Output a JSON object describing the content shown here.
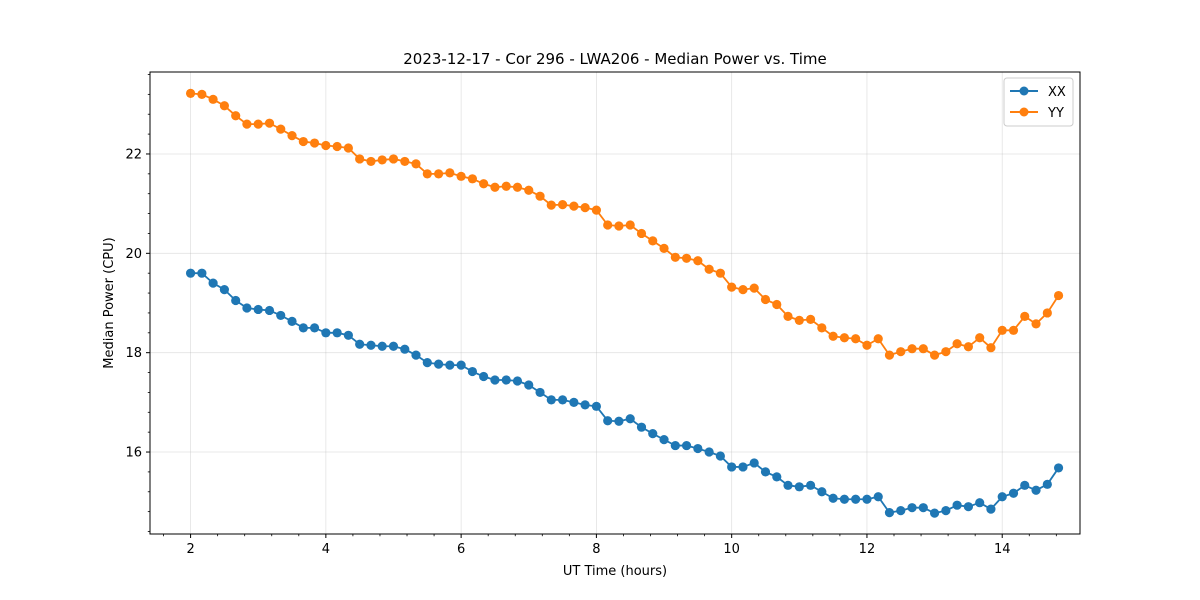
{
  "chart_data": {
    "type": "line",
    "title": "2023-12-17 - Cor 296 - LWA206 - Median Power vs. Time",
    "xlabel": "UT Time (hours)",
    "ylabel": "Median Power (CPU)",
    "xlim": [
      1.4,
      15.15
    ],
    "ylim": [
      14.35,
      23.65
    ],
    "xticks": [
      2,
      4,
      6,
      8,
      10,
      12,
      14
    ],
    "yticks": [
      16,
      18,
      20,
      22
    ],
    "xtick_labels": [
      "2",
      "4",
      "6",
      "8",
      "10",
      "12",
      "14"
    ],
    "ytick_labels": [
      "16",
      "18",
      "20",
      "22"
    ],
    "grid": true,
    "legend_position": "top-right",
    "marker": "circle",
    "x": [
      2.0,
      2.167,
      2.333,
      2.5,
      2.667,
      2.833,
      3.0,
      3.167,
      3.333,
      3.5,
      3.667,
      3.833,
      4.0,
      4.167,
      4.333,
      4.5,
      4.667,
      4.833,
      5.0,
      5.167,
      5.333,
      5.5,
      5.667,
      5.833,
      6.0,
      6.167,
      6.333,
      6.5,
      6.667,
      6.833,
      7.0,
      7.167,
      7.333,
      7.5,
      7.667,
      7.833,
      8.0,
      8.167,
      8.333,
      8.5,
      8.667,
      8.833,
      9.0,
      9.167,
      9.333,
      9.5,
      9.667,
      9.833,
      10.0,
      10.167,
      10.333,
      10.5,
      10.667,
      10.833,
      11.0,
      11.167,
      11.333,
      11.5,
      11.667,
      11.833,
      12.0,
      12.167,
      12.333,
      12.5,
      12.667,
      12.833,
      13.0,
      13.167,
      13.333,
      13.5,
      13.667,
      13.833,
      14.0,
      14.167,
      14.333,
      14.5,
      14.667,
      14.833
    ],
    "series": [
      {
        "name": "XX",
        "color": "#1f77b4",
        "values": [
          19.6,
          19.6,
          19.4,
          19.27,
          19.05,
          18.9,
          18.87,
          18.85,
          18.75,
          18.63,
          18.5,
          18.5,
          18.4,
          18.4,
          18.35,
          18.17,
          18.15,
          18.13,
          18.13,
          18.07,
          17.95,
          17.8,
          17.77,
          17.75,
          17.75,
          17.62,
          17.52,
          17.45,
          17.45,
          17.43,
          17.35,
          17.2,
          17.05,
          17.05,
          17.0,
          16.95,
          16.92,
          16.63,
          16.62,
          16.67,
          16.5,
          16.37,
          16.25,
          16.13,
          16.13,
          16.07,
          16.0,
          15.92,
          15.7,
          15.7,
          15.78,
          15.6,
          15.5,
          15.33,
          15.3,
          15.33,
          15.2,
          15.07,
          15.05,
          15.05,
          15.05,
          15.1,
          14.78,
          14.82,
          14.88,
          14.88,
          14.77,
          14.82,
          14.93,
          14.9,
          14.98,
          14.85,
          15.1,
          15.17,
          15.33,
          15.23,
          15.35,
          15.68
        ]
      },
      {
        "name": "YY",
        "color": "#ff7f0e",
        "values": [
          23.22,
          23.2,
          23.1,
          22.97,
          22.77,
          22.6,
          22.6,
          22.62,
          22.5,
          22.37,
          22.25,
          22.22,
          22.17,
          22.15,
          22.12,
          21.9,
          21.85,
          21.88,
          21.9,
          21.85,
          21.8,
          21.6,
          21.6,
          21.62,
          21.55,
          21.5,
          21.4,
          21.33,
          21.35,
          21.33,
          21.27,
          21.15,
          20.97,
          20.98,
          20.95,
          20.92,
          20.87,
          20.57,
          20.55,
          20.57,
          20.4,
          20.25,
          20.1,
          19.92,
          19.9,
          19.85,
          19.68,
          19.6,
          19.32,
          19.27,
          19.3,
          19.07,
          18.97,
          18.73,
          18.65,
          18.67,
          18.5,
          18.33,
          18.3,
          18.28,
          18.15,
          18.28,
          17.95,
          18.02,
          18.08,
          18.08,
          17.95,
          18.02,
          18.18,
          18.12,
          18.3,
          18.1,
          18.45,
          18.45,
          18.73,
          18.58,
          18.8,
          19.15
        ]
      }
    ]
  }
}
